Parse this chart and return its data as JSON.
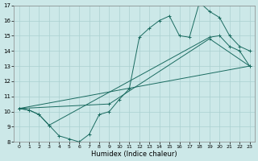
{
  "title": "",
  "xlabel": "Humidex (Indice chaleur)",
  "background_color": "#cce8e8",
  "grid_color": "#aad0d0",
  "line_color": "#1a6b60",
  "xlim": [
    -0.5,
    23.5
  ],
  "ylim": [
    8,
    17
  ],
  "yticks": [
    8,
    9,
    10,
    11,
    12,
    13,
    14,
    15,
    16,
    17
  ],
  "xticks": [
    0,
    1,
    2,
    3,
    4,
    5,
    6,
    7,
    8,
    9,
    10,
    11,
    12,
    13,
    14,
    15,
    16,
    17,
    18,
    19,
    20,
    21,
    22,
    23
  ],
  "line1_x": [
    0,
    1,
    2,
    3,
    4,
    5,
    6,
    7,
    8,
    9,
    10,
    11,
    12,
    13,
    14,
    15,
    16,
    17,
    18,
    19,
    20,
    21,
    22,
    23
  ],
  "line1_y": [
    10.2,
    10.1,
    9.8,
    9.1,
    8.4,
    8.2,
    8.0,
    8.5,
    9.8,
    10.0,
    10.8,
    11.5,
    14.9,
    15.5,
    16.0,
    16.3,
    15.0,
    14.9,
    17.2,
    16.6,
    16.2,
    15.0,
    14.3,
    14.0
  ],
  "line2_x": [
    0,
    1,
    2,
    3,
    19,
    20,
    21,
    22,
    23
  ],
  "line2_y": [
    10.2,
    10.1,
    9.8,
    9.1,
    14.9,
    15.0,
    14.3,
    14.0,
    13.0
  ],
  "line3_x": [
    0,
    23
  ],
  "line3_y": [
    10.2,
    13.0
  ],
  "line4_x": [
    0,
    9,
    19,
    23
  ],
  "line4_y": [
    10.2,
    10.5,
    14.8,
    13.0
  ],
  "xlabel_fontsize": 6,
  "tick_fontsize": 4.5
}
